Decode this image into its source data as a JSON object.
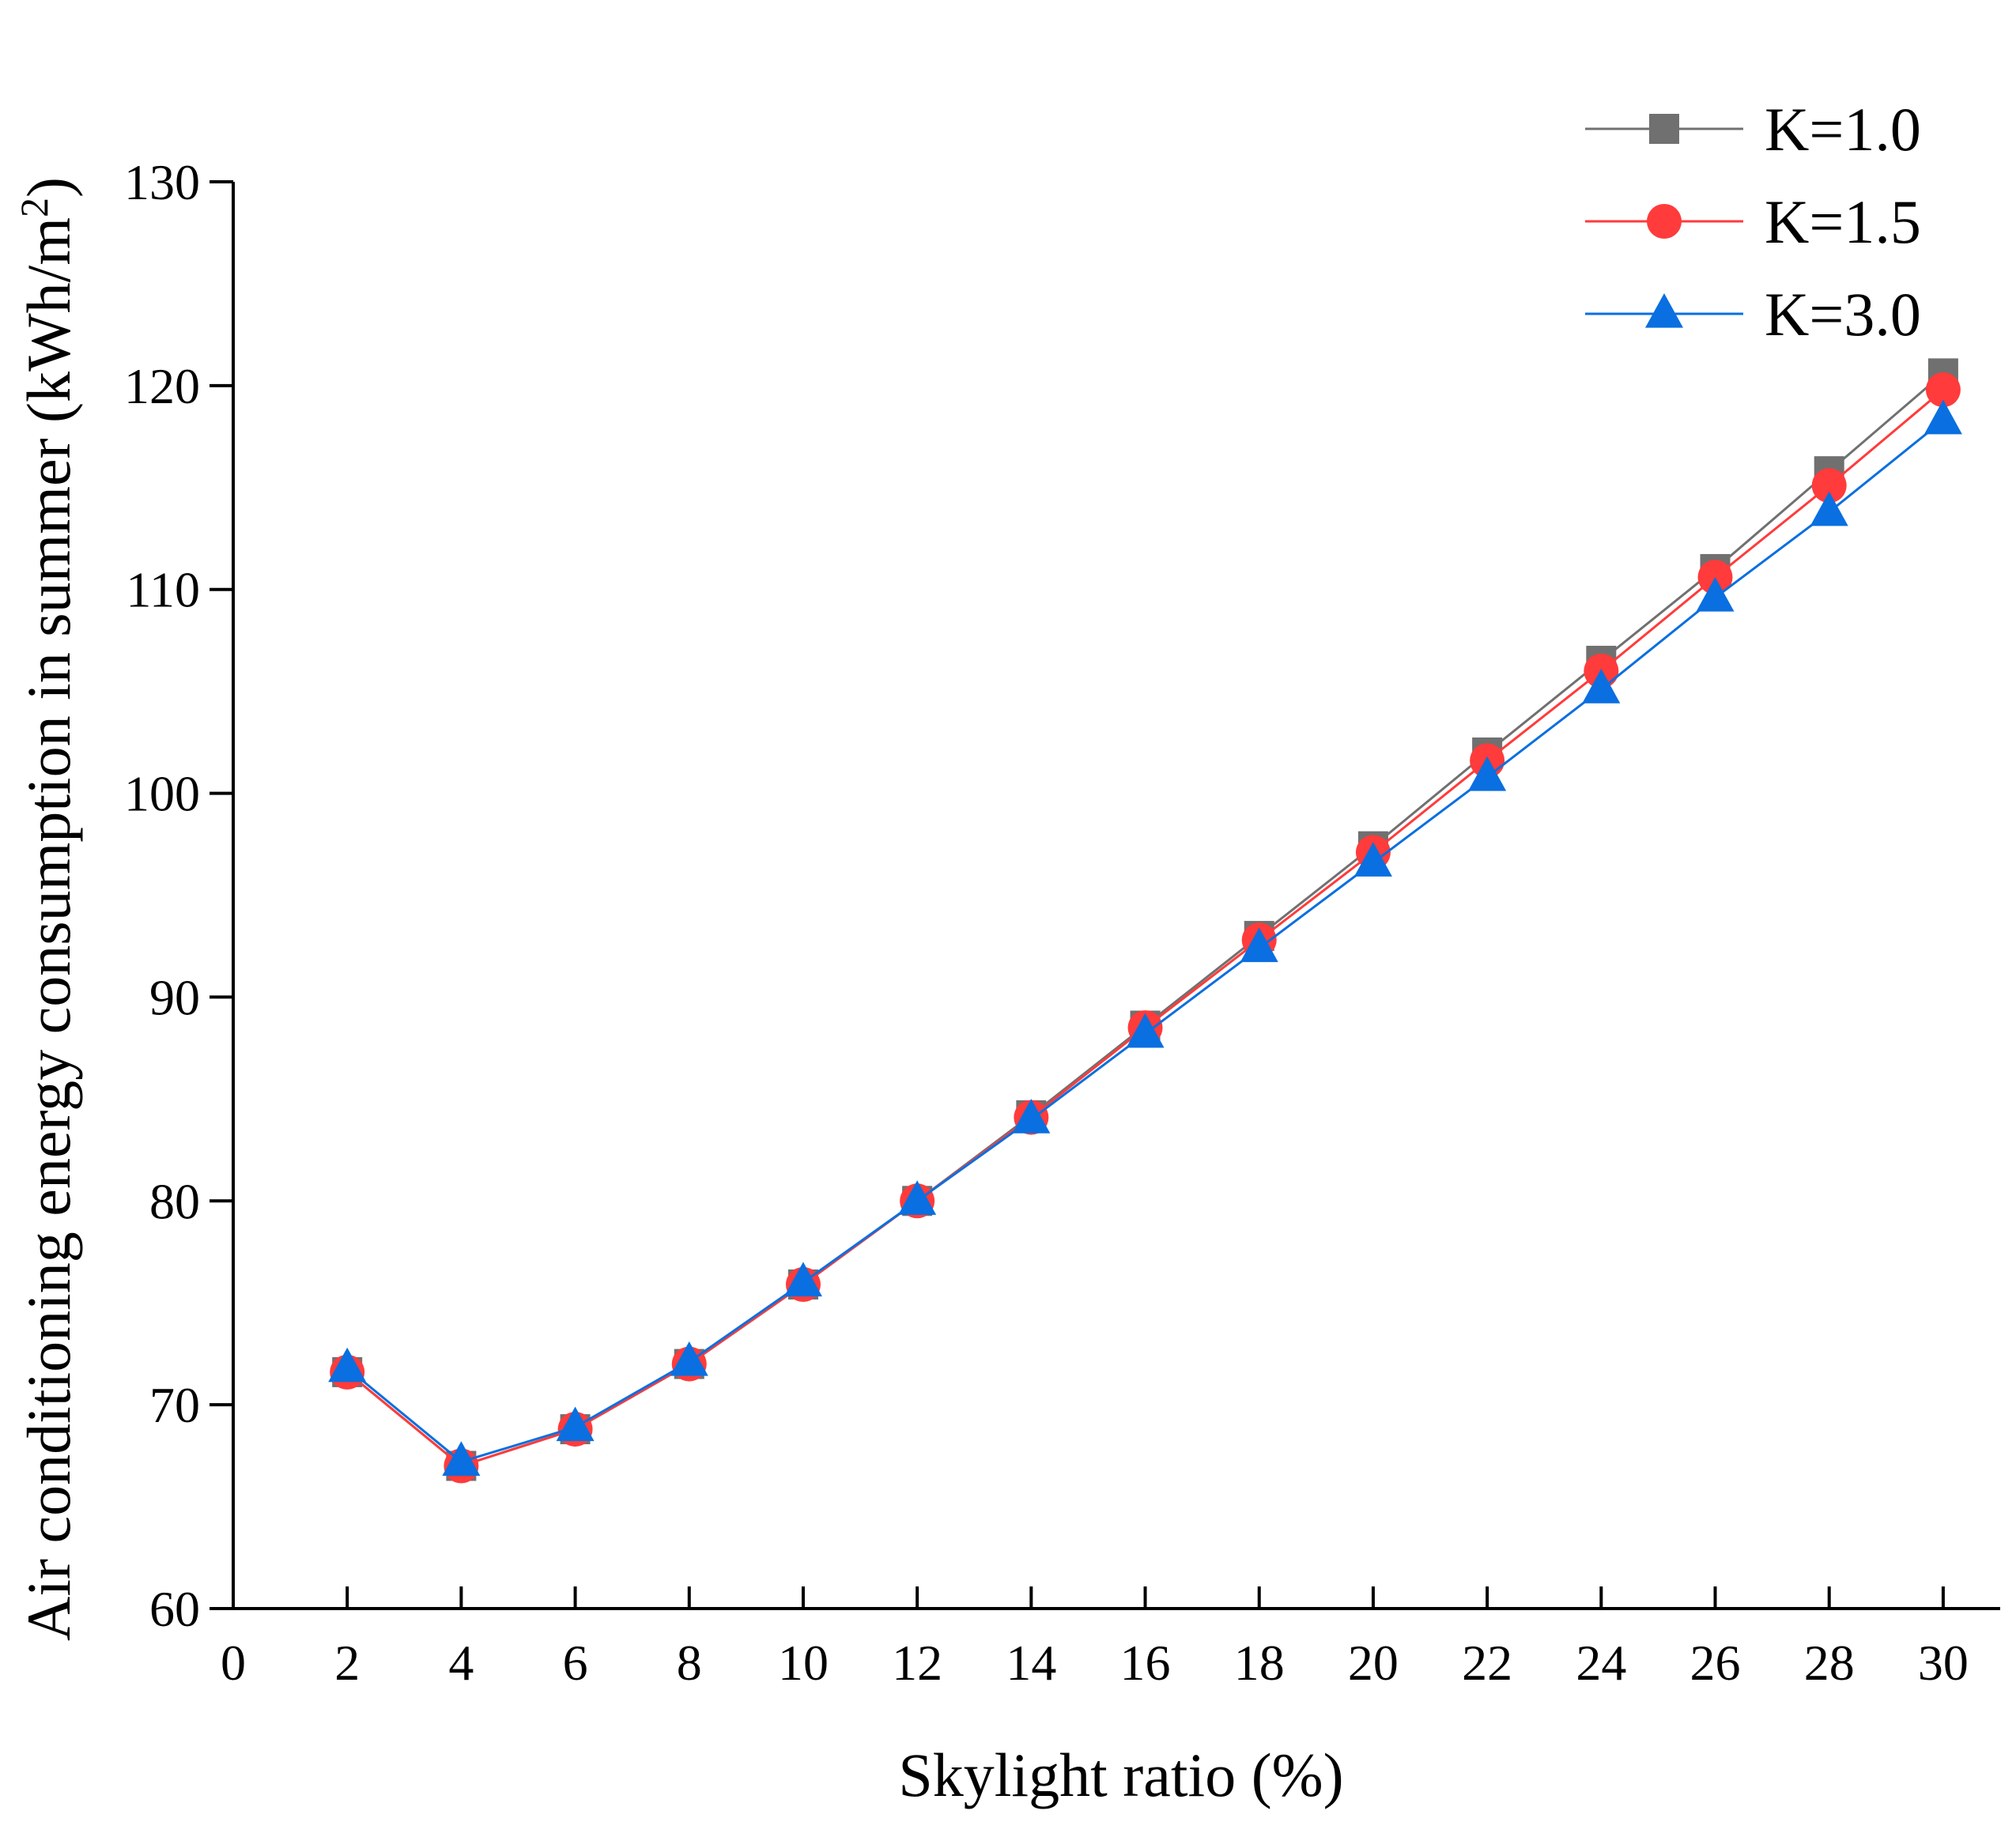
{
  "chart_data": {
    "type": "line",
    "title": "",
    "xlabel": "Skylight ratio (%)",
    "ylabel": "Air conditioning energy consumption in summer (kWh/m",
    "ylabel_superscript": "2",
    "ylabel_close": ")",
    "xlim": [
      0,
      31
    ],
    "ylim": [
      60,
      130
    ],
    "xticks": [
      0,
      2,
      4,
      6,
      8,
      10,
      12,
      14,
      16,
      18,
      20,
      22,
      24,
      26,
      28,
      30
    ],
    "yticks": [
      60,
      70,
      80,
      90,
      100,
      110,
      120,
      130
    ],
    "x": [
      2,
      4,
      6,
      8,
      10,
      12,
      14,
      16,
      18,
      20,
      22,
      24,
      26,
      28,
      30
    ],
    "legend_position": "top-right",
    "grid": false,
    "series": [
      {
        "name": "K=1.0",
        "marker": "square",
        "color": "#707070",
        "values": [
          71.6,
          67.0,
          68.8,
          72.0,
          75.9,
          80.0,
          84.2,
          88.6,
          93.0,
          97.4,
          102.0,
          106.5,
          111.0,
          115.8,
          120.6
        ]
      },
      {
        "name": "K=1.5",
        "marker": "circle",
        "color": "#ff3b3b",
        "values": [
          71.6,
          67.0,
          68.8,
          72.0,
          75.9,
          80.0,
          84.1,
          88.5,
          92.8,
          97.1,
          101.6,
          106.0,
          110.6,
          115.1,
          119.8
        ]
      },
      {
        "name": "K=3.0",
        "marker": "triangle",
        "color": "#0a6fe0",
        "values": [
          71.8,
          67.2,
          68.9,
          72.1,
          76.0,
          80.0,
          84.0,
          88.2,
          92.4,
          96.6,
          100.8,
          105.1,
          109.6,
          113.8,
          118.3
        ]
      }
    ]
  }
}
